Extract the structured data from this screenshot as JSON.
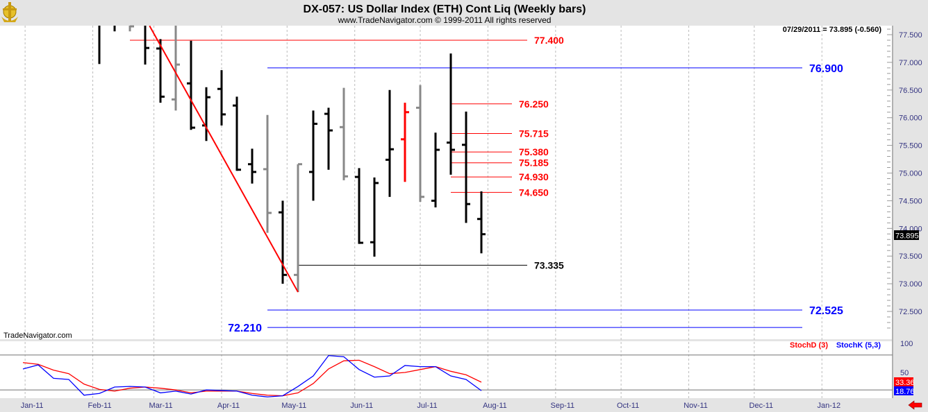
{
  "header": {
    "title": "DX-057:  US Dollar Index (ETH) Cont Liq  (Weekly bars)",
    "copyright": "www.TradeNavigator.com © 1999-2011 All rights reserved",
    "logo_icon": "gold-anchor-logo"
  },
  "watermark": "TradeNavigator.com",
  "readout": "07/29/2011 = 73.895 (-0.560)",
  "last_price_label": "73.895",
  "nav_arrow_icon": "red-left-arrow-icon",
  "colors": {
    "up_bar": "#000000",
    "gray_bar": "#888888",
    "highlight_bar": "#ff0000",
    "red_level": "#ff0000",
    "blue_level": "#0000ff",
    "black_level": "#000000",
    "stochD": "#ff0000",
    "stochK": "#0000ff",
    "axis_text": "#333380"
  },
  "chart_data": [
    {
      "type": "ohlc",
      "title": "DX-057:  US Dollar Index (ETH) Cont Liq  (Weekly bars)",
      "ylim": [
        72.1,
        77.66
      ],
      "y_ticks": [
        "77.500",
        "77.000",
        "76.500",
        "76.000",
        "75.500",
        "75.000",
        "74.500",
        "74.000",
        "73.500",
        "73.000",
        "72.500"
      ],
      "x_ticks": [
        "Jan-11",
        "Feb-11",
        "Mar-11",
        "Apr-11",
        "May-11",
        "Jun-11",
        "Jul-11",
        "Aug-11",
        "Sep-11",
        "Oct-11",
        "Nov-11",
        "Dec-11",
        "Jan-12"
      ],
      "x_tick_dates": [
        "2011-01-01",
        "2011-02-01",
        "2011-03-01",
        "2011-04-01",
        "2011-05-01",
        "2011-06-01",
        "2011-07-01",
        "2011-08-01",
        "2011-09-01",
        "2011-10-01",
        "2011-11-01",
        "2011-12-01",
        "2012-01-01"
      ],
      "grid": "vertical dashed",
      "bars": [
        {
          "date": "2011-02-04",
          "open": null,
          "high": null,
          "low": 76.97,
          "close": null,
          "color": "black"
        },
        {
          "date": "2011-02-11",
          "open": null,
          "high": null,
          "low": 77.56,
          "close": null,
          "color": "black"
        },
        {
          "date": "2011-02-18",
          "open": null,
          "high": null,
          "low": 77.56,
          "close": 77.65,
          "color": "gray"
        },
        {
          "date": "2011-02-25",
          "open": null,
          "high": null,
          "low": 76.96,
          "close": 77.26,
          "color": "black"
        },
        {
          "date": "2011-03-04",
          "open": 77.25,
          "high": 77.42,
          "low": 76.27,
          "close": 76.38,
          "color": "black"
        },
        {
          "date": "2011-03-11",
          "open": 76.33,
          "high": null,
          "low": 76.13,
          "close": 76.96,
          "color": "gray"
        },
        {
          "date": "2011-03-18",
          "open": 76.62,
          "high": 77.39,
          "low": 75.78,
          "close": 75.82,
          "color": "black"
        },
        {
          "date": "2011-03-25",
          "open": 75.86,
          "high": 76.55,
          "low": 75.58,
          "close": 76.37,
          "color": "black"
        },
        {
          "date": "2011-04-01",
          "open": 76.52,
          "high": 76.86,
          "low": 75.86,
          "close": 76.06,
          "color": "black"
        },
        {
          "date": "2011-04-08",
          "open": 76.22,
          "high": 76.38,
          "low": 75.04,
          "close": 75.06,
          "color": "black"
        },
        {
          "date": "2011-04-15",
          "open": 75.16,
          "high": 75.44,
          "low": 74.81,
          "close": 75.02,
          "color": "black"
        },
        {
          "date": "2011-04-22",
          "open": 75.07,
          "high": 76.05,
          "low": 73.92,
          "close": 74.28,
          "color": "gray"
        },
        {
          "date": "2011-04-29",
          "open": 74.29,
          "high": 74.5,
          "low": 73.0,
          "close": 73.16,
          "color": "black"
        },
        {
          "date": "2011-05-06",
          "open": 73.16,
          "high": 75.16,
          "low": 72.85,
          "close": 75.16,
          "color": "gray"
        },
        {
          "date": "2011-05-13",
          "open": 75.02,
          "high": 76.13,
          "low": 74.5,
          "close": 75.89,
          "color": "black"
        },
        {
          "date": "2011-05-20",
          "open": 76.07,
          "high": 76.18,
          "low": 75.06,
          "close": 75.77,
          "color": "black"
        },
        {
          "date": "2011-05-27",
          "open": 75.83,
          "high": 76.54,
          "low": 74.87,
          "close": 74.94,
          "color": "gray"
        },
        {
          "date": "2011-06-03",
          "open": 74.93,
          "high": 75.09,
          "low": 73.72,
          "close": 73.74,
          "color": "black"
        },
        {
          "date": "2011-06-10",
          "open": 73.75,
          "high": 74.92,
          "low": 73.49,
          "close": 74.82,
          "color": "black"
        },
        {
          "date": "2011-06-17",
          "open": 75.24,
          "high": 76.5,
          "low": 74.57,
          "close": 75.43,
          "color": "black"
        },
        {
          "date": "2011-06-24",
          "open": 75.61,
          "high": 76.27,
          "low": 74.84,
          "close": 76.1,
          "color": "red"
        },
        {
          "date": "2011-07-01",
          "open": 76.18,
          "high": 76.59,
          "low": 74.48,
          "close": 74.57,
          "color": "gray"
        },
        {
          "date": "2011-07-08",
          "open": 74.5,
          "high": 75.73,
          "low": 74.38,
          "close": 75.42,
          "color": "black"
        },
        {
          "date": "2011-07-15",
          "open": 75.55,
          "high": 77.16,
          "low": 74.97,
          "close": 75.42,
          "color": "black"
        },
        {
          "date": "2011-07-22",
          "open": 75.51,
          "high": 76.11,
          "low": 74.1,
          "close": 74.44,
          "color": "black"
        },
        {
          "date": "2011-07-29",
          "open": 74.17,
          "high": 74.67,
          "low": 73.55,
          "close": 73.895,
          "color": "black"
        }
      ],
      "levels": [
        {
          "label": "77.400",
          "value": 77.4,
          "color": "red",
          "from": "2011-02-18",
          "to": "2011-08-19",
          "label_side": "right"
        },
        {
          "label": "76.900",
          "value": 76.9,
          "color": "blue",
          "from": "2011-04-22",
          "to": "2011-12-23",
          "label_side": "right"
        },
        {
          "label": "76.250",
          "value": 76.25,
          "color": "red",
          "from": "2011-07-15",
          "to": "2011-08-12",
          "label_side": "right"
        },
        {
          "label": "75.715",
          "value": 75.715,
          "color": "red",
          "from": "2011-07-15",
          "to": "2011-08-12",
          "label_side": "right"
        },
        {
          "label": "75.380",
          "value": 75.38,
          "color": "red",
          "from": "2011-07-15",
          "to": "2011-08-12",
          "label_side": "right"
        },
        {
          "label": "75.185",
          "value": 75.185,
          "color": "red",
          "from": "2011-07-15",
          "to": "2011-08-12",
          "label_side": "right"
        },
        {
          "label": "74.930",
          "value": 74.93,
          "color": "red",
          "from": "2011-07-15",
          "to": "2011-08-12",
          "label_side": "right"
        },
        {
          "label": "74.650",
          "value": 74.65,
          "color": "red",
          "from": "2011-07-15",
          "to": "2011-08-12",
          "label_side": "right"
        },
        {
          "label": "73.335",
          "value": 73.335,
          "color": "black",
          "from": "2011-05-06",
          "to": "2011-08-19",
          "label_side": "right"
        },
        {
          "label": "72.525",
          "value": 72.525,
          "color": "blue",
          "from": "2011-04-22",
          "to": "2011-12-23",
          "label_side": "right"
        },
        {
          "label": "72.210",
          "value": 72.21,
          "color": "blue",
          "from": "2011-04-22",
          "to": "2011-12-23",
          "label_side": "left"
        }
      ],
      "trendline": {
        "color": "red",
        "start": {
          "date": "2011-02-27",
          "value": 77.66
        },
        "end": {
          "date": "2011-05-06",
          "value": 72.85
        }
      }
    },
    {
      "type": "line",
      "ylim": [
        0,
        100
      ],
      "y_ticks": [
        "100",
        "50"
      ],
      "reference_lines": [
        80,
        20
      ],
      "legend": [
        {
          "label": "StochD (3)",
          "color": "red"
        },
        {
          "label": "StochK (5,3)",
          "color": "blue"
        }
      ],
      "legend_placement": "top-right",
      "start_date": "2010-12-31",
      "interval": "weekly",
      "series": [
        {
          "name": "StochD (3)",
          "color": "red",
          "last_label": "33.36",
          "values": [
            67,
            64,
            54,
            48,
            30,
            21,
            18,
            23,
            25,
            23,
            20,
            15,
            18,
            18,
            18,
            14,
            11,
            10,
            15,
            31,
            56,
            70,
            71,
            60,
            48,
            50,
            55,
            60,
            52,
            46,
            33.36
          ]
        },
        {
          "name": "StochK (5,3)",
          "color": "blue",
          "last_label": "18.76",
          "values": [
            56,
            63,
            40,
            38,
            11,
            14,
            25,
            26,
            25,
            15,
            18,
            13,
            20,
            19,
            18,
            11,
            8,
            10,
            26,
            44,
            79,
            77,
            55,
            42,
            44,
            62,
            60,
            60,
            44,
            38,
            18.76
          ]
        }
      ]
    }
  ]
}
